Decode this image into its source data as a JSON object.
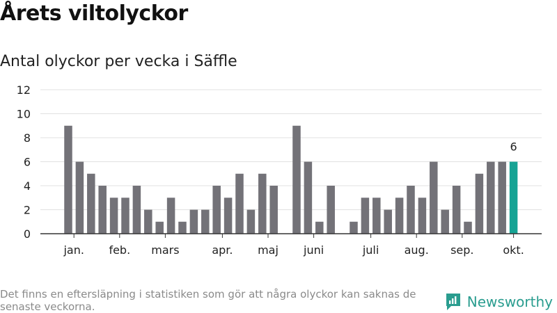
{
  "header": {
    "title": "Årets viltolyckor",
    "subtitle": "Antal olyckor per vecka i Säffle"
  },
  "footer": {
    "note": "Det finns en eftersläpning i statistiken som gör att några olyckor kan saknas de senaste veckorna.",
    "brand": "Newsworthy"
  },
  "colors": {
    "bar": "#737278",
    "highlight": "#16a394",
    "grid": "#e1e1e1",
    "axis": "#333333",
    "brand": "#2a9d8f"
  },
  "chart_data": {
    "type": "bar",
    "title": "Antal olyckor per vecka i Säffle",
    "xlabel": "",
    "ylabel": "",
    "ylim": [
      0,
      12
    ],
    "yticks": [
      0,
      2,
      4,
      6,
      8,
      10,
      12
    ],
    "weeks": [
      1,
      2,
      3,
      4,
      5,
      6,
      7,
      8,
      9,
      10,
      11,
      12,
      13,
      14,
      15,
      16,
      17,
      18,
      19,
      20,
      21,
      22,
      23,
      24,
      25,
      26,
      27,
      28,
      29,
      30,
      31,
      32,
      33,
      34,
      35,
      36,
      37,
      38,
      39,
      40
    ],
    "values": [
      9,
      6,
      5,
      4,
      3,
      3,
      4,
      2,
      1,
      3,
      1,
      2,
      2,
      4,
      3,
      5,
      2,
      5,
      4,
      0,
      9,
      6,
      1,
      4,
      0,
      1,
      3,
      3,
      2,
      3,
      4,
      3,
      6,
      2,
      4,
      1,
      5,
      6,
      6,
      6
    ],
    "highlight_index": 39,
    "highlight_label": "6",
    "month_labels": [
      {
        "label": "jan.",
        "week": 1.5
      },
      {
        "label": "feb.",
        "week": 5.5
      },
      {
        "label": "mars",
        "week": 9.5
      },
      {
        "label": "apr.",
        "week": 14.5
      },
      {
        "label": "maj",
        "week": 18.5
      },
      {
        "label": "juni",
        "week": 22.5
      },
      {
        "label": "juli",
        "week": 27.5
      },
      {
        "label": "aug.",
        "week": 31.5
      },
      {
        "label": "sep.",
        "week": 35.5
      },
      {
        "label": "okt.",
        "week": 40
      }
    ]
  }
}
